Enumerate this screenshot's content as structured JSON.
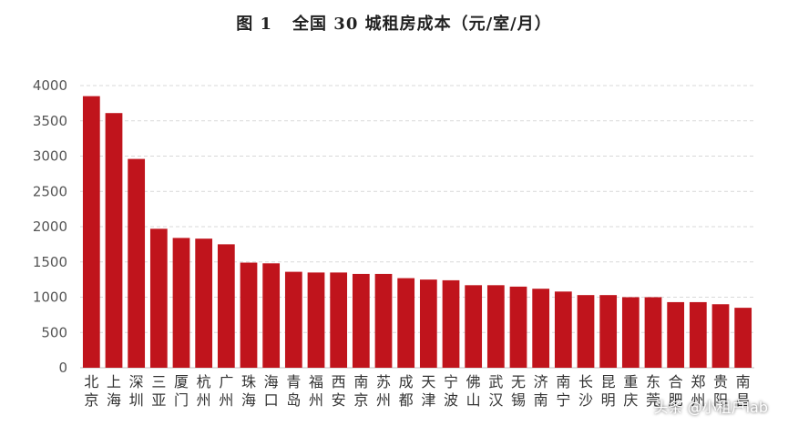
{
  "chart_data": {
    "type": "bar",
    "title_label": "图 1",
    "title": "全国 30 城租房成本（元/室/月）",
    "xlabel": "",
    "ylabel": "",
    "ylim": [
      0,
      4000
    ],
    "yticks": [
      "0",
      "500",
      "1000",
      "1500",
      "2000",
      "2500",
      "3000",
      "3500",
      "4000"
    ],
    "grid": true,
    "bar_color": "#c0141c",
    "categories": [
      "北京",
      "上海",
      "深圳",
      "三亚",
      "厦门",
      "杭州",
      "广州",
      "珠海",
      "海口",
      "青岛",
      "福州",
      "西安",
      "南京",
      "苏州",
      "成都",
      "天津",
      "宁波",
      "佛山",
      "武汉",
      "无锡",
      "济南",
      "南宁",
      "长沙",
      "昆明",
      "重庆",
      "东莞",
      "合肥",
      "郑州",
      "贵阳",
      "南昌"
    ],
    "values": [
      3850,
      3610,
      2960,
      1970,
      1840,
      1830,
      1750,
      1490,
      1480,
      1360,
      1350,
      1350,
      1330,
      1330,
      1270,
      1250,
      1240,
      1170,
      1170,
      1150,
      1120,
      1080,
      1030,
      1030,
      1000,
      1000,
      930,
      930,
      900,
      850
    ],
    "category_labels": [
      [
        "北",
        "京"
      ],
      [
        "上",
        "海"
      ],
      [
        "深",
        "圳"
      ],
      [
        "三",
        "亚"
      ],
      [
        "厦",
        "门"
      ],
      [
        "杭",
        "州"
      ],
      [
        "广",
        "州"
      ],
      [
        "珠",
        "海"
      ],
      [
        "海",
        "口"
      ],
      [
        "青",
        "岛"
      ],
      [
        "福",
        "州"
      ],
      [
        "西",
        "安"
      ],
      [
        "南",
        "京"
      ],
      [
        "苏",
        "州"
      ],
      [
        "成",
        "都"
      ],
      [
        "天",
        "津"
      ],
      [
        "宁",
        "波"
      ],
      [
        "佛",
        "山"
      ],
      [
        "武",
        "汉"
      ],
      [
        "无",
        "锡"
      ],
      [
        "济",
        "南"
      ],
      [
        "南",
        "宁"
      ],
      [
        "长",
        "沙"
      ],
      [
        "昆",
        "明"
      ],
      [
        "重",
        "庆"
      ],
      [
        "东",
        "莞"
      ],
      [
        "合",
        "肥"
      ],
      [
        "郑",
        "州"
      ],
      [
        "贵",
        "阳"
      ],
      [
        "南",
        "昌"
      ]
    ]
  },
  "watermark": "头条 @小租户lab"
}
